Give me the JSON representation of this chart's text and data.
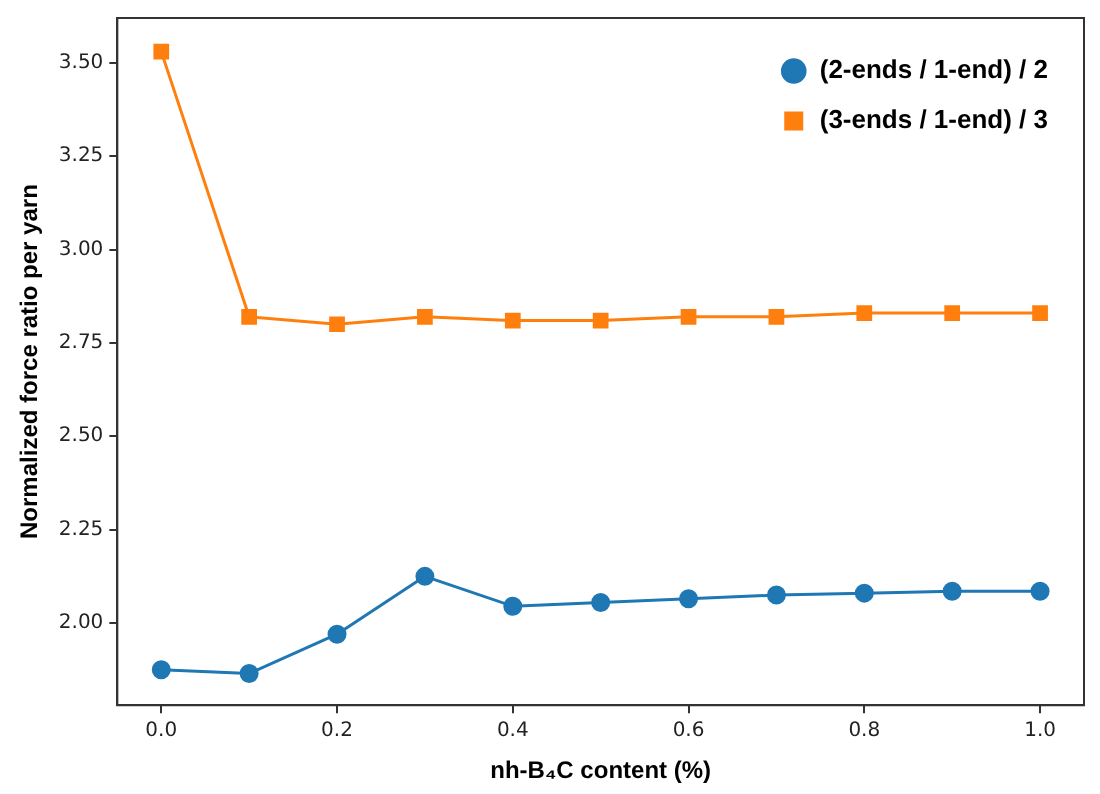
{
  "chart_data": {
    "type": "line",
    "xlabel": "nh-B₄C content (%)",
    "ylabel": "Normalized force ratio per yarn",
    "x": [
      0,
      0.1,
      0.2,
      0.3,
      0.4,
      0.5,
      0.6,
      0.7,
      0.8,
      0.9,
      1.0
    ],
    "series": [
      {
        "name": "(2-ends / 1-end) / 2",
        "color": "#1f77b4",
        "marker": "circle",
        "values": [
          1.875,
          1.865,
          1.97,
          2.125,
          2.045,
          2.055,
          2.065,
          2.075,
          2.08,
          2.085,
          2.085
        ]
      },
      {
        "name": "(3-ends / 1-end) / 3",
        "color": "#ff7f0e",
        "marker": "square",
        "values": [
          3.53,
          2.82,
          2.8,
          2.82,
          2.81,
          2.81,
          2.82,
          2.82,
          2.83,
          2.83,
          2.83
        ]
      }
    ],
    "xlim": [
      -0.05,
      1.05
    ],
    "xticks": [
      {
        "value": 0,
        "label": "0.0"
      },
      {
        "value": 0.2,
        "label": "0.2"
      },
      {
        "value": 0.4,
        "label": "0.4"
      },
      {
        "value": 0.6,
        "label": "0.6"
      },
      {
        "value": 0.8,
        "label": "0.8"
      },
      {
        "value": 1.0,
        "label": "1.0"
      }
    ],
    "ylim": [
      1.78,
      3.62
    ],
    "yticks": [
      {
        "value": 2,
        "label": "2.00"
      },
      {
        "value": 2.25,
        "label": "2.25"
      },
      {
        "value": 2.5,
        "label": "2.50"
      },
      {
        "value": 2.75,
        "label": "2.75"
      },
      {
        "value": 3,
        "label": "3.00"
      },
      {
        "value": 3.25,
        "label": "3.25"
      },
      {
        "value": 3.5,
        "label": "3.50"
      }
    ],
    "grid": false,
    "legend": "top right",
    "line_style": "solid"
  }
}
